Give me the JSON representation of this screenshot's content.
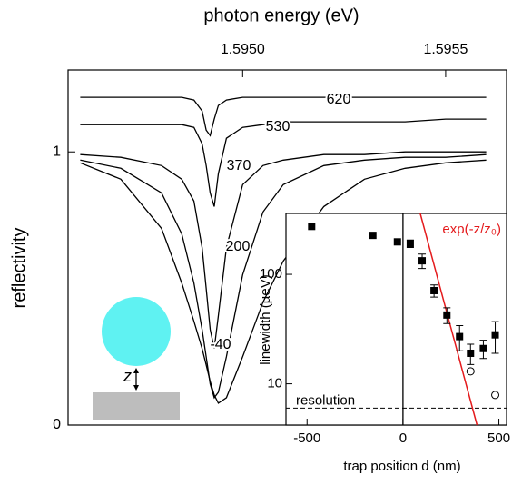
{
  "chart_data": [
    {
      "type": "line",
      "title": "photon energy (eV)",
      "y_label": "reflectivity",
      "x": [
        1.5946,
        1.5947,
        1.5948,
        1.59485,
        1.59488,
        1.5949,
        1.59491,
        1.59492,
        1.59493,
        1.59494,
        1.59496,
        1.595,
        1.59505,
        1.5951,
        1.5952,
        1.5953,
        1.5954,
        1.5955,
        1.5956
      ],
      "xlim": [
        1.59457,
        1.59565
      ],
      "xticks": [
        {
          "value": 1.595,
          "label": "1.5950"
        },
        {
          "value": 1.5955,
          "label": "1.5955"
        }
      ],
      "ylim": [
        0,
        1.3
      ],
      "yticks": [
        0,
        1
      ],
      "series": [
        {
          "name": "620",
          "color": "#000",
          "values": [
            1.2,
            1.2,
            1.2,
            1.2,
            1.19,
            1.15,
            1.08,
            1.06,
            1.12,
            1.17,
            1.19,
            1.2,
            1.2,
            1.2,
            1.2,
            1.2,
            1.2,
            1.2,
            1.2
          ]
        },
        {
          "name": "530",
          "color": "#000",
          "values": [
            1.1,
            1.1,
            1.1,
            1.1,
            1.09,
            1.03,
            0.95,
            0.85,
            0.8,
            0.92,
            1.05,
            1.09,
            1.1,
            1.11,
            1.11,
            1.11,
            1.11,
            1.12,
            1.12
          ]
        },
        {
          "name": "370",
          "color": "#000",
          "values": [
            0.99,
            0.98,
            0.95,
            0.9,
            0.82,
            0.65,
            0.5,
            0.35,
            0.28,
            0.4,
            0.65,
            0.88,
            0.95,
            0.97,
            0.99,
            0.99,
            1.0,
            1.0,
            1.0
          ]
        },
        {
          "name": "200",
          "color": "#000",
          "values": [
            0.97,
            0.94,
            0.85,
            0.7,
            0.52,
            0.35,
            0.25,
            0.15,
            0.1,
            0.12,
            0.25,
            0.55,
            0.78,
            0.88,
            0.95,
            0.97,
            0.98,
            0.98,
            0.99
          ]
        },
        {
          "name": "-40",
          "color": "#000",
          "values": [
            0.96,
            0.9,
            0.72,
            0.52,
            0.38,
            0.28,
            0.22,
            0.16,
            0.11,
            0.08,
            0.1,
            0.25,
            0.45,
            0.6,
            0.8,
            0.9,
            0.94,
            0.96,
            0.97
          ]
        }
      ],
      "annotations": [
        "z"
      ]
    },
    {
      "type": "scatter",
      "x_label": "trap position d (nm)",
      "y_label": "linewidth (µeV)",
      "log_y": true,
      "xlim": [
        -610,
        540
      ],
      "xticks": [
        -500,
        0,
        500
      ],
      "ylim": [
        4.2,
        360
      ],
      "yticks": [
        10,
        100
      ],
      "series": [
        {
          "marker": "square",
          "color": "#000",
          "x": [
            -476,
            -157,
            -29,
            38,
            100,
            162,
            229,
            295,
            352,
            419,
            481
          ],
          "values": [
            274,
            227,
            198,
            191,
            133,
            71,
            42.5,
            27,
            19,
            21,
            28
          ],
          "errors": [
            null,
            null,
            null,
            15,
            20,
            9,
            7,
            7,
            4,
            4,
            9
          ]
        },
        {
          "marker": "circle",
          "color": "#000",
          "x": [
            352,
            481
          ],
          "values": [
            13,
            7.9
          ]
        }
      ],
      "fit": {
        "label": "exp(-z/z₀)",
        "color": "#e41a1c",
        "x": [
          90,
          386
        ],
        "values": [
          360,
          4.2
        ]
      },
      "resolution": {
        "label": "resolution",
        "value": 6
      },
      "vline": 0
    }
  ]
}
